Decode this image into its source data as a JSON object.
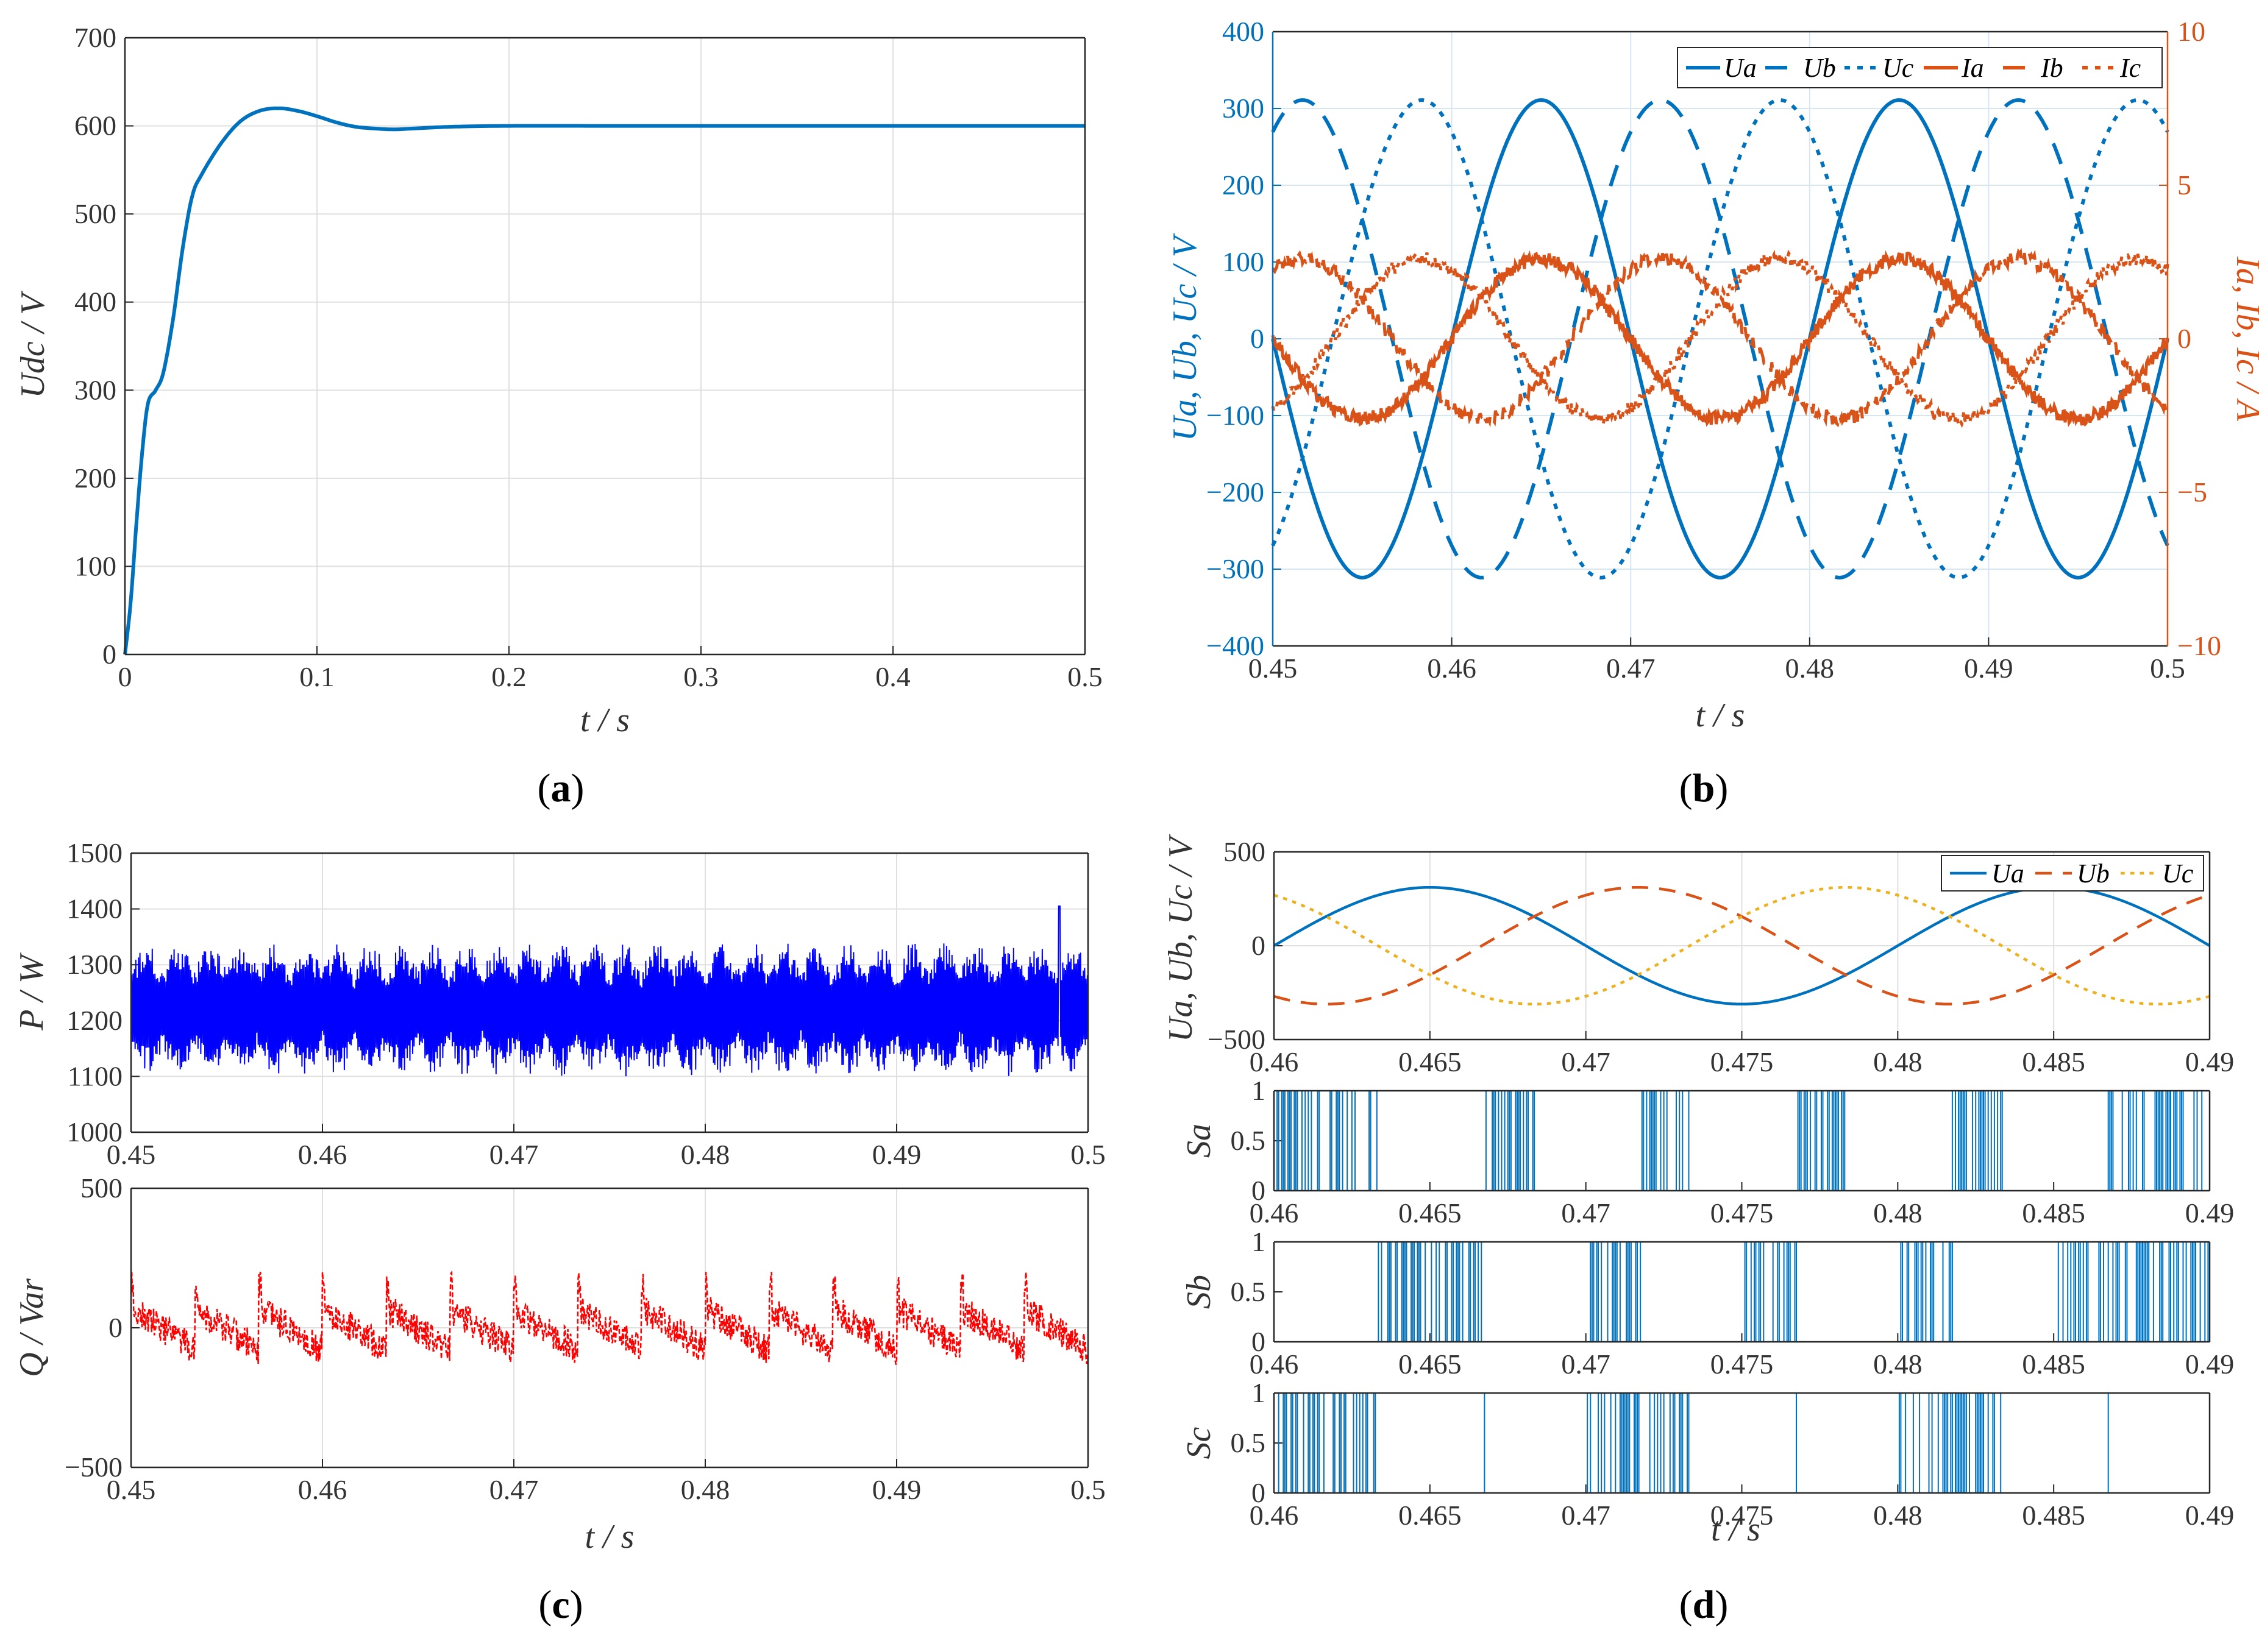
{
  "figure": {
    "panel_labels": [
      {
        "open": "(",
        "letter": "a",
        "close": ")"
      },
      {
        "open": "(",
        "letter": "b",
        "close": ")"
      },
      {
        "open": "(",
        "letter": "c",
        "close": ")"
      },
      {
        "open": "(",
        "letter": "d",
        "close": ")"
      }
    ]
  },
  "chart_data": [
    {
      "id": "a",
      "type": "line",
      "title": "",
      "xlabel": "t / s",
      "ylabel": "Udc / V",
      "xlim": [
        0,
        0.5
      ],
      "ylim": [
        0,
        700
      ],
      "xticks": [
        "0",
        "0.1",
        "0.2",
        "0.3",
        "0.4",
        "0.5"
      ],
      "yticks": [
        "0",
        "100",
        "200",
        "300",
        "400",
        "500",
        "600",
        "700"
      ],
      "grid": true,
      "series": [
        {
          "name": "Udc",
          "color": "#0072BD",
          "x": [
            0,
            0.003,
            0.006,
            0.009,
            0.012,
            0.016,
            0.02,
            0.025,
            0.03,
            0.035,
            0.04,
            0.05,
            0.06,
            0.07,
            0.08,
            0.09,
            0.1,
            0.11,
            0.12,
            0.13,
            0.14,
            0.15,
            0.17,
            0.2,
            0.25,
            0.3,
            0.4,
            0.5
          ],
          "y": [
            0,
            60,
            150,
            230,
            285,
            300,
            320,
            380,
            460,
            520,
            545,
            580,
            605,
            617,
            620,
            617,
            611,
            604,
            599,
            597,
            596,
            597,
            599,
            600,
            600,
            600,
            600,
            600
          ]
        }
      ]
    },
    {
      "id": "b",
      "type": "line",
      "title": "",
      "xlabel": "t / s",
      "ylabel": "Ua, Ub, Uc / V",
      "ylabel_right": "Ia, Ib, Ic / A",
      "xlim": [
        0.45,
        0.5
      ],
      "ylim": [
        -400,
        400
      ],
      "ylim_right": [
        -10,
        10
      ],
      "xticks": [
        "0.45",
        "0.46",
        "0.47",
        "0.48",
        "0.49",
        "0.5"
      ],
      "yticks": [
        "-400",
        "-300",
        "-200",
        "-100",
        "0",
        "100",
        "200",
        "300",
        "400"
      ],
      "yticks_right": [
        "-10",
        "-5",
        "0",
        "5",
        "10"
      ],
      "grid": true,
      "legend": [
        "Ua",
        "Ub",
        "Uc",
        "Ia",
        "Ib",
        "Ic"
      ],
      "legend_position": "top-right",
      "frequency_hz": 50,
      "series": [
        {
          "name": "Ua",
          "axis": "left",
          "amplitude": 311,
          "phase_deg": 0,
          "color": "#0072BD",
          "style": "solid"
        },
        {
          "name": "Ub",
          "axis": "left",
          "amplitude": 311,
          "phase_deg": -120,
          "color": "#0072BD",
          "style": "dashed"
        },
        {
          "name": "Uc",
          "axis": "left",
          "amplitude": 311,
          "phase_deg": 120,
          "color": "#0072BD",
          "style": "dotted"
        },
        {
          "name": "Ia",
          "axis": "right",
          "amplitude": 2.6,
          "phase_deg": 0,
          "color": "#D95319",
          "style": "solid"
        },
        {
          "name": "Ib",
          "axis": "right",
          "amplitude": 2.6,
          "phase_deg": -120,
          "color": "#D95319",
          "style": "dashed"
        },
        {
          "name": "Ic",
          "axis": "right",
          "amplitude": 2.6,
          "phase_deg": 120,
          "color": "#D95319",
          "style": "dotted"
        }
      ]
    },
    {
      "id": "c-top",
      "type": "line",
      "title": "",
      "xlabel": "",
      "ylabel": "P / W",
      "xlim": [
        0.45,
        0.5
      ],
      "ylim": [
        1000,
        1500
      ],
      "xticks": [
        "0.45",
        "0.46",
        "0.47",
        "0.48",
        "0.49",
        "0.5"
      ],
      "yticks": [
        "1000",
        "1100",
        "1200",
        "1300",
        "1400",
        "1500"
      ],
      "grid": true,
      "series": [
        {
          "name": "P",
          "mean": 1220,
          "band": [
            1100,
            1340
          ],
          "peak": {
            "x": 0.4985,
            "y": 1405
          },
          "color": "#0000FF",
          "style": "solid"
        }
      ]
    },
    {
      "id": "c-bottom",
      "type": "line",
      "title": "",
      "xlabel": "t / s",
      "ylabel": "Q / Var",
      "xlim": [
        0.45,
        0.5
      ],
      "ylim": [
        -500,
        500
      ],
      "xticks": [
        "0.45",
        "0.46",
        "0.47",
        "0.48",
        "0.49",
        "0.5"
      ],
      "yticks": [
        "-500",
        "0",
        "500"
      ],
      "grid": true,
      "series": [
        {
          "name": "Q",
          "mean": 0,
          "band": [
            -150,
            200
          ],
          "color": "#FF0000",
          "style": "dashed"
        }
      ]
    },
    {
      "id": "d-voltage",
      "type": "line",
      "title": "",
      "xlabel": "",
      "ylabel": "Ua, Ub, Uc / V",
      "xlim": [
        0.46,
        0.49
      ],
      "ylim": [
        -500,
        500
      ],
      "xticks": [
        "0.46",
        "0.465",
        "0.47",
        "0.475",
        "0.48",
        "0.485",
        "0.49"
      ],
      "yticks": [
        "-500",
        "0",
        "500"
      ],
      "grid": true,
      "legend": [
        "Ua",
        "Ub",
        "Uc"
      ],
      "legend_position": "top-right",
      "frequency_hz": 50,
      "series": [
        {
          "name": "Ua",
          "amplitude": 311,
          "phase_deg": 0,
          "color": "#0072BD",
          "style": "solid"
        },
        {
          "name": "Ub",
          "amplitude": 311,
          "phase_deg": -120,
          "color": "#D95319",
          "style": "dashed"
        },
        {
          "name": "Uc",
          "amplitude": 311,
          "phase_deg": 120,
          "color": "#EDB120",
          "style": "dotted"
        }
      ]
    },
    {
      "id": "d-switch",
      "type": "line",
      "title": "",
      "xlabel": "t / s",
      "xlim": [
        0.46,
        0.49
      ],
      "ylim": [
        0,
        1
      ],
      "xticks": [
        "0.46",
        "0.465",
        "0.47",
        "0.475",
        "0.48",
        "0.485",
        "0.49"
      ],
      "yticks": [
        "0",
        "0.5",
        "1"
      ],
      "series": [
        {
          "name": "Sa",
          "ylabel": "Sa",
          "color": "#0072BD",
          "high_intervals": [
            [
              0.4633,
              0.4667
            ],
            [
              0.4733,
              0.4767
            ],
            [
              0.4833,
              0.4867
            ]
          ],
          "low_intervals": [
            [
              0.4683,
              0.4717
            ],
            [
              0.4783,
              0.4817
            ]
          ]
        },
        {
          "name": "Sb",
          "ylabel": "Sb",
          "color": "#0072BD",
          "high_intervals": [
            [
              0.4667,
              0.47
            ],
            [
              0.4767,
              0.48
            ]
          ],
          "low_intervals": [
            [
              0.46,
              0.4633
            ],
            [
              0.4717,
              0.475
            ],
            [
              0.4817,
              0.485
            ]
          ]
        },
        {
          "name": "Sc",
          "ylabel": "Sc",
          "color": "#0072BD",
          "high_intervals": [
            [
              0.4667,
              0.47
            ],
            [
              0.4767,
              0.48
            ],
            [
              0.4867,
              0.49
            ]
          ],
          "low_intervals": [
            [
              0.4633,
              0.4667
            ],
            [
              0.4733,
              0.4767
            ],
            [
              0.4833,
              0.4867
            ]
          ]
        }
      ]
    }
  ]
}
